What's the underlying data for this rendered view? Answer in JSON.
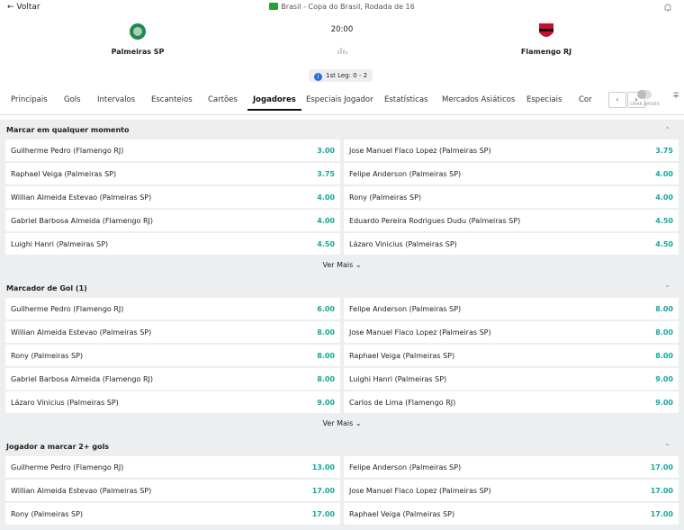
{
  "header": {
    "back": "Voltar",
    "competition": "Brasil - Copa do Brasil, Rodada de 16",
    "home": "Palmeiras SP",
    "away": "Flamengo RJ",
    "time": "20:00",
    "first_leg": "1st Leg: 0 - 2",
    "toggle_label": "CRIAR APOSTA"
  },
  "tabs": [
    "Principais",
    "Gols",
    "Intervalos",
    "Escanteios",
    "Cartões",
    "Jogadores",
    "Especiais Jogador",
    "Estatísticas",
    "Mercados Asiáticos",
    "Especiais",
    "Cor"
  ],
  "active_tab": 5,
  "sections": [
    {
      "title": "Marcar em qualquer momento",
      "more": "Ver Mais",
      "rows": [
        [
          "Guilherme Pedro (Flamengo RJ)",
          "3.00",
          "Jose Manuel Flaco Lopez (Palmeiras SP)",
          "3.75"
        ],
        [
          "Raphael Veiga (Palmeiras SP)",
          "3.75",
          "Felipe Anderson (Palmeiras SP)",
          "4.00"
        ],
        [
          "Willian Almeida Estevao (Palmeiras SP)",
          "4.00",
          "Rony (Palmeiras SP)",
          "4.00"
        ],
        [
          "Gabriel Barbosa Almeida (Flamengo RJ)",
          "4.00",
          "Eduardo Pereira Rodrigues Dudu (Palmeiras SP)",
          "4.50"
        ],
        [
          "Luighi Hanri (Palmeiras SP)",
          "4.50",
          "Lázaro Vinicius (Palmeiras SP)",
          "4.50"
        ]
      ]
    },
    {
      "title": "Marcador de Gol (1)",
      "more": "Ver Mais",
      "rows": [
        [
          "Guilherme Pedro (Flamengo RJ)",
          "6.00",
          "Felipe Anderson (Palmeiras SP)",
          "8.00"
        ],
        [
          "Willian Almeida Estevao (Palmeiras SP)",
          "8.00",
          "Jose Manuel Flaco Lopez (Palmeiras SP)",
          "8.00"
        ],
        [
          "Rony (Palmeiras SP)",
          "8.00",
          "Raphael Veiga (Palmeiras SP)",
          "8.00"
        ],
        [
          "Gabriel Barbosa Almeida (Flamengo RJ)",
          "8.00",
          "Luighi Hanri (Palmeiras SP)",
          "9.00"
        ],
        [
          "Lázaro Vinicius (Palmeiras SP)",
          "9.00",
          "Carlos de Lima (Flamengo RJ)",
          "9.00"
        ]
      ]
    },
    {
      "title": "Jogador a marcar 2+ gols",
      "rows": [
        [
          "Guilherme Pedro (Flamengo RJ)",
          "13.00",
          "Felipe Anderson (Palmeiras SP)",
          "17.00"
        ],
        [
          "Willian Almeida Estevao (Palmeiras SP)",
          "17.00",
          "Jose Manuel Flaco Lopez (Palmeiras SP)",
          "17.00"
        ],
        [
          "Rony (Palmeiras SP)",
          "17.00",
          "Raphael Veiga (Palmeiras SP)",
          "17.00"
        ]
      ]
    }
  ]
}
